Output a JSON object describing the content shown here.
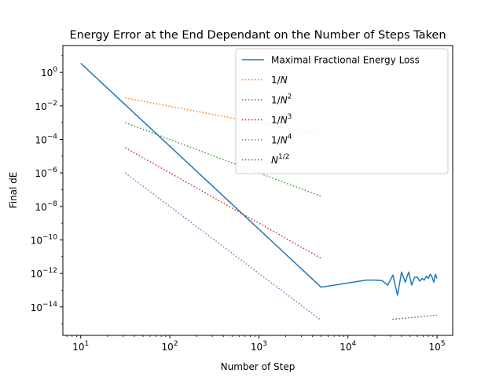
{
  "chart_data": {
    "type": "line",
    "title": "Energy Error at the End Dependant on the Number of Steps Taken",
    "xlabel": "Number of Step",
    "ylabel": "Final dE",
    "xscale": "log",
    "yscale": "log",
    "xlim": [
      6.3,
      150000
    ],
    "ylim": [
      2e-16,
      40
    ],
    "grid": false,
    "legend_position": "top-right",
    "x_ticks": [
      {
        "value": 10,
        "base": "10",
        "exp": "1"
      },
      {
        "value": 100,
        "base": "10",
        "exp": "2"
      },
      {
        "value": 1000,
        "base": "10",
        "exp": "3"
      },
      {
        "value": 10000,
        "base": "10",
        "exp": "4"
      },
      {
        "value": 100000,
        "base": "10",
        "exp": "5"
      }
    ],
    "y_ticks": [
      {
        "value": 1,
        "base": "10",
        "exp": "0"
      },
      {
        "value": 0.01,
        "base": "10",
        "exp": "−2"
      },
      {
        "value": 0.0001,
        "base": "10",
        "exp": "−4"
      },
      {
        "value": 1e-06,
        "base": "10",
        "exp": "−6"
      },
      {
        "value": 1e-08,
        "base": "10",
        "exp": "−8"
      },
      {
        "value": 1e-10,
        "base": "10",
        "exp": "−10"
      },
      {
        "value": 1e-12,
        "base": "10",
        "exp": "−12"
      },
      {
        "value": 1e-14,
        "base": "10",
        "exp": "−14"
      }
    ],
    "series": [
      {
        "name": "Maximal Fractional Energy Loss",
        "legend_main": "Maximal Fractional Energy Loss",
        "legend_sup": "",
        "color": "#1f77b4",
        "style": "solid",
        "x": [
          10,
          5000,
          16000,
          20000,
          24000,
          28000,
          32000,
          36000,
          40000,
          44000,
          48000,
          52000,
          56000,
          60000,
          64000,
          68000,
          72000,
          76000,
          80000,
          84000,
          88000,
          92000,
          96000,
          100000
        ],
        "y": [
          3.5,
          1.5e-13,
          4e-13,
          4e-13,
          3.8e-13,
          2e-13,
          8e-13,
          5e-14,
          1.2e-12,
          3e-13,
          1.2e-12,
          2e-13,
          6e-13,
          6e-13,
          3.5e-13,
          5e-13,
          4e-13,
          7e-13,
          5e-13,
          9e-13,
          6e-13,
          3e-13,
          9e-13,
          5e-13
        ]
      },
      {
        "name": "1/N",
        "legend_main": "1/N",
        "legend_sup": "",
        "color": "#ff7f0e",
        "style": "dotted",
        "x": [
          31.6,
          5000
        ],
        "y": [
          0.03,
          0.00019
        ]
      },
      {
        "name": "1/N^2",
        "legend_main": "1/N",
        "legend_sup": "2",
        "color": "#2ca02c",
        "style": "dotted",
        "x": [
          31.6,
          5000
        ],
        "y": [
          0.001,
          4e-08
        ]
      },
      {
        "name": "1/N^3",
        "legend_main": "1/N",
        "legend_sup": "3",
        "color": "#d62728",
        "style": "dotted",
        "x": [
          31.6,
          5000
        ],
        "y": [
          3.2e-05,
          8e-12
        ]
      },
      {
        "name": "1/N^4",
        "legend_main": "1/N",
        "legend_sup": "4",
        "color": "#9467bd",
        "style": "dotted",
        "x": [
          31.6,
          5000
        ],
        "y": [
          1e-06,
          1.6e-15
        ]
      },
      {
        "name": "N^1/2",
        "legend_main": "N",
        "legend_sup": "1/2",
        "color": "#8c564b",
        "style": "dotted",
        "x": [
          31600,
          100000
        ],
        "y": [
          1.8e-15,
          3.2e-15
        ]
      }
    ]
  }
}
